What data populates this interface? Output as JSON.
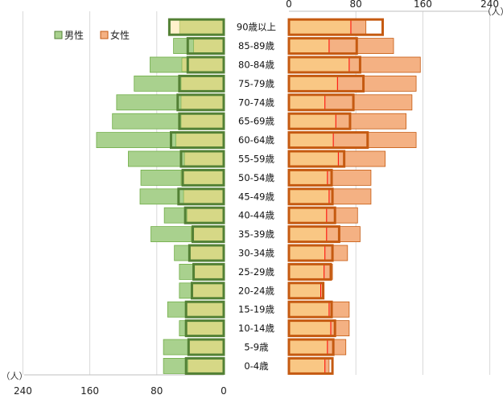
{
  "chart_data": {
    "type": "bar",
    "subtype": "population-pyramid",
    "title": "",
    "unit": "（人）",
    "xlim": [
      0,
      240
    ],
    "grid": true,
    "legend_position": "top-left",
    "legend": [
      {
        "label": "男性",
        "color": "#a9d18e"
      },
      {
        "label": "女性",
        "color": "#f4b183"
      }
    ],
    "x_ticks_left": [
      "240",
      "160",
      "80",
      "0"
    ],
    "x_ticks_right": [
      "0",
      "80",
      "160",
      "240"
    ],
    "categories": [
      "90歳以上",
      "85-89歳",
      "80-84歳",
      "75-79歳",
      "70-74歳",
      "65-69歳",
      "60-64歳",
      "55-59歳",
      "50-54歳",
      "45-49歳",
      "40-44歳",
      "35-39歳",
      "30-34歳",
      "25-29歳",
      "20-24歳",
      "15-19歳",
      "10-14歳",
      "5-9歳",
      "0-4歳"
    ],
    "series": [
      {
        "name": "男性",
        "side": "left",
        "color": "#a9d18e",
        "values": [
          63,
          60,
          88,
          107,
          128,
          133,
          152,
          114,
          99,
          100,
          71,
          87,
          59,
          53,
          53,
          67,
          53,
          72,
          72
        ]
      },
      {
        "name": "女性",
        "side": "right",
        "color": "#f4b183",
        "values": [
          92,
          125,
          157,
          152,
          147,
          140,
          152,
          115,
          98,
          98,
          82,
          85,
          70,
          52,
          40,
          72,
          72,
          68,
          48
        ]
      }
    ],
    "overlay_series": [
      {
        "side": "left",
        "color": "#d6d886",
        "highlight_color": "#fff2cc",
        "highlight_values": [
          13,
          0,
          0,
          0,
          0,
          0,
          0,
          0,
          0,
          0,
          0,
          0,
          0,
          0,
          0,
          0,
          0,
          0,
          0
        ],
        "values": [
          53,
          36,
          50,
          51,
          51,
          51,
          57,
          47,
          51,
          48,
          44,
          39,
          40,
          37,
          38,
          46,
          46,
          43,
          43
        ]
      },
      {
        "side": "right",
        "color": "#f9c784",
        "values": [
          74,
          48,
          72,
          58,
          43,
          56,
          53,
          59,
          46,
          48,
          45,
          45,
          43,
          42,
          38,
          48,
          50,
          46,
          43
        ]
      }
    ],
    "outline_series": [
      {
        "side": "left",
        "color": "#538135",
        "values": [
          65,
          43,
          43,
          53,
          55,
          53,
          63,
          51,
          49,
          54,
          46,
          37,
          41,
          36,
          38,
          45,
          45,
          42,
          45
        ]
      },
      {
        "side": "right",
        "color": "#c55a11",
        "values": [
          112,
          81,
          85,
          89,
          77,
          73,
          94,
          66,
          51,
          52,
          55,
          60,
          52,
          50,
          41,
          51,
          55,
          53,
          52
        ]
      }
    ]
  }
}
